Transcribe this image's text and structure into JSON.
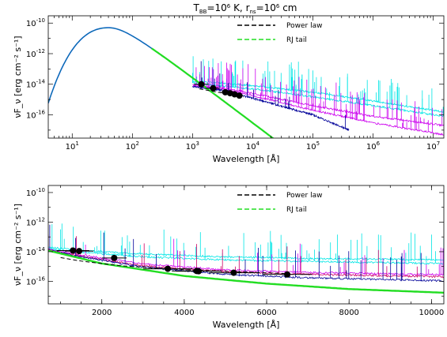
{
  "title": {
    "prefix": "T",
    "sub1": "BB",
    "eq1": "=10",
    "sup1": "6",
    "unit1": " K,   r",
    "sub2": "ns",
    "eq2": "=10",
    "sup2": "6",
    "unit2": " cm"
  },
  "colors": {
    "blackbody": "#2255ff",
    "rj_tail": "#22dd22",
    "power_law": "#000000",
    "cyan": "#00e5e5",
    "magenta": "#cc00ee",
    "crimson": "#cc0066",
    "navy": "#000099",
    "teal": "#008080"
  },
  "chart_data": [
    {
      "type": "line",
      "xscale": "log",
      "yscale": "log",
      "xlim": [
        4,
        15000000
      ],
      "ylim": [
        3e-18,
        3e-10
      ],
      "xlabel": "Wavelength [Å]",
      "ylabel": "νF_ν [erg cm⁻² s⁻¹]",
      "x_ticks": [
        {
          "value": 10,
          "base": "10",
          "exp": "1"
        },
        {
          "value": 100,
          "base": "10",
          "exp": "2"
        },
        {
          "value": 1000,
          "base": "10",
          "exp": "3"
        },
        {
          "value": 10000,
          "base": "10",
          "exp": "4"
        },
        {
          "value": 100000,
          "base": "10",
          "exp": "5"
        },
        {
          "value": 1000000,
          "base": "10",
          "exp": "6"
        },
        {
          "value": 10000000,
          "base": "10",
          "exp": "7"
        }
      ],
      "y_ticks": [
        {
          "value": 1e-10,
          "base": "10",
          "exp": "-10"
        },
        {
          "value": 1e-12,
          "base": "10",
          "exp": "-12"
        },
        {
          "value": 1e-14,
          "base": "10",
          "exp": "-14"
        },
        {
          "value": 1e-16,
          "base": "10",
          "exp": "-16"
        }
      ],
      "legend": {
        "placement": "top-right",
        "entries": [
          {
            "label": "Power law",
            "style": "dashed",
            "color": "#000000"
          },
          {
            "label": "RJ tail",
            "style": "dashed",
            "color": "#22dd22"
          }
        ]
      },
      "blackbody": {
        "peak_x": 40,
        "peak_y": 5e-11,
        "rj_slope": -3
      },
      "power_law": {
        "x": [
          1300,
          7000
        ],
        "y": [
          5e-15,
          1.5e-15
        ]
      },
      "series": [
        {
          "color": "#00e5e5",
          "x": [
            1000,
            3000,
            10000,
            100000,
            1000000,
            15000000
          ],
          "y": [
            1.5e-14,
            1.2e-14,
            8e-15,
            3e-15,
            8e-16,
            1.5e-16
          ],
          "lines": true
        },
        {
          "color": "#00e5e5",
          "x": [
            1000,
            3000,
            10000,
            100000,
            1000000,
            15000000
          ],
          "y": [
            1.2e-14,
            8e-15,
            5e-15,
            1.5e-15,
            4e-16,
            8e-17
          ],
          "lines": true
        },
        {
          "color": "#cc00ee",
          "x": [
            1000,
            3000,
            10000,
            100000,
            1000000,
            15000000
          ],
          "y": [
            9e-15,
            6e-15,
            2.5e-15,
            4e-16,
            8e-17,
            2e-17
          ],
          "lines": true
        },
        {
          "color": "#cc00ee",
          "x": [
            1000,
            3000,
            10000,
            100000,
            1000000,
            15000000
          ],
          "y": [
            8e-15,
            5e-15,
            1.8e-15,
            2e-16,
            3e-17,
            5e-18
          ],
          "lines": true
        },
        {
          "color": "#000099",
          "x": [
            1000,
            3000,
            10000,
            100000,
            400000
          ],
          "y": [
            7e-15,
            4e-15,
            1.2e-15,
            1e-16,
            1e-17
          ],
          "lines": false
        }
      ],
      "points": {
        "x": [
          1400,
          2200,
          3500,
          4200,
          5000,
          6000
        ],
        "y": [
          1e-14,
          5.5e-15,
          3e-15,
          2.6e-15,
          2.2e-15,
          1.8e-15
        ],
        "xerr": [
          [
            1050,
            1850
          ],
          [
            1650,
            2750
          ],
          [
            3000,
            4000
          ],
          [
            3600,
            4800
          ],
          [
            4300,
            5700
          ],
          [
            5200,
            6900
          ]
        ]
      }
    },
    {
      "type": "line",
      "xscale": "linear",
      "yscale": "log",
      "xlim": [
        700,
        10300
      ],
      "ylim": [
        3e-18,
        3e-10
      ],
      "xlabel": "Wavelength [Å]",
      "ylabel": "νF_ν [erg cm⁻² s⁻¹]",
      "x_ticks": [
        {
          "value": 2000,
          "label": "2000"
        },
        {
          "value": 4000,
          "label": "4000"
        },
        {
          "value": 6000,
          "label": "6000"
        },
        {
          "value": 8000,
          "label": "8000"
        },
        {
          "value": 10000,
          "label": "10000"
        }
      ],
      "y_ticks": [
        {
          "value": 1e-10,
          "base": "10",
          "exp": "-10"
        },
        {
          "value": 1e-12,
          "base": "10",
          "exp": "-12"
        },
        {
          "value": 1e-14,
          "base": "10",
          "exp": "-14"
        },
        {
          "value": 1e-16,
          "base": "10",
          "exp": "-16"
        }
      ],
      "legend": {
        "placement": "top-right",
        "entries": [
          {
            "label": "Power law",
            "style": "dashed",
            "color": "#000000"
          },
          {
            "label": "RJ tail",
            "style": "dashed",
            "color": "#22dd22"
          }
        ]
      },
      "rj_tail": {
        "x": [
          700,
          2000,
          4000,
          6000,
          8000,
          10300
        ],
        "y": [
          1.2e-14,
          1.6e-15,
          2.3e-16,
          7e-17,
          3e-17,
          1.7e-17
        ]
      },
      "power_law": {
        "x": [
          1000,
          1500,
          2500,
          4000,
          6500
        ],
        "y": [
          4e-15,
          2.3e-15,
          1.1e-15,
          6e-16,
          3.3e-16
        ]
      },
      "series": [
        {
          "color": "#00e5e5",
          "x": [
            700,
            1500,
            3000,
            5000,
            7000,
            10300
          ],
          "y": [
            2e-14,
            1.2e-14,
            7e-15,
            4.5e-15,
            3.5e-15,
            2.8e-15
          ]
        },
        {
          "color": "#00e5e5",
          "x": [
            700,
            1500,
            3000,
            5000,
            7000,
            10300
          ],
          "y": [
            1.6e-14,
            9e-15,
            4.5e-15,
            2.8e-15,
            2.2e-15,
            1.6e-15
          ]
        },
        {
          "color": "#cc00ee",
          "x": [
            700,
            1500,
            3000,
            5000,
            7000,
            10300
          ],
          "y": [
            1.4e-14,
            6e-15,
            1.5e-15,
            6e-16,
            4e-16,
            2.8e-16
          ]
        },
        {
          "color": "#cc0066",
          "x": [
            700,
            1500,
            3000,
            5000,
            7000,
            10300
          ],
          "y": [
            1.3e-14,
            5e-15,
            1.1e-15,
            4.5e-16,
            3e-16,
            2e-16
          ]
        },
        {
          "color": "#000099",
          "x": [
            700,
            1500,
            3000,
            5000,
            7000,
            10300
          ],
          "y": [
            1.25e-14,
            4.5e-15,
            9e-16,
            3e-16,
            1.7e-16,
            1.1e-16
          ]
        }
      ],
      "points": {
        "x": [
          1300,
          1450,
          2300,
          3600,
          4300,
          4350,
          5200,
          6500
        ],
        "y": [
          1.2e-14,
          1.1e-14,
          3.8e-15,
          7e-16,
          5e-16,
          4.8e-16,
          3.8e-16,
          2.9e-16
        ],
        "xerr": [
          [
            900,
            1700
          ],
          [
            1100,
            1800
          ],
          [
            2000,
            2600
          ],
          [
            3000,
            4200
          ],
          [
            3700,
            4900
          ],
          [
            3800,
            4900
          ],
          [
            4600,
            5800
          ],
          [
            5900,
            7100
          ]
        ]
      }
    }
  ]
}
